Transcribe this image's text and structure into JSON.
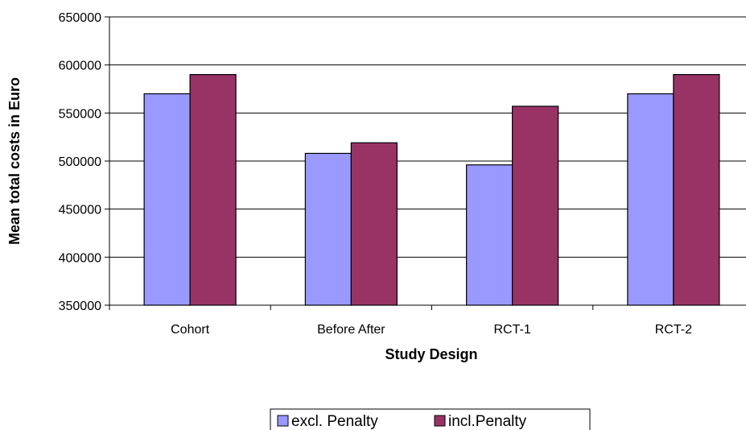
{
  "chart_data": {
    "type": "bar",
    "title": "",
    "xlabel": "Study Design",
    "ylabel": "Mean total costs in Euro",
    "categories": [
      "Cohort",
      "Before After",
      "RCT-1",
      "RCT-2"
    ],
    "series": [
      {
        "name": "excl. Penalty",
        "color": "#9999ff",
        "values": [
          570000,
          508000,
          496000,
          570000
        ]
      },
      {
        "name": "incl.Penalty",
        "color": "#993366",
        "values": [
          590000,
          519000,
          557000,
          590000
        ]
      }
    ],
    "ylim": [
      350000,
      650000
    ],
    "yticks": [
      "350000",
      "400000",
      "450000",
      "500000",
      "550000",
      "600000",
      "650000"
    ],
    "grid": true,
    "legend_position": "bottom"
  }
}
